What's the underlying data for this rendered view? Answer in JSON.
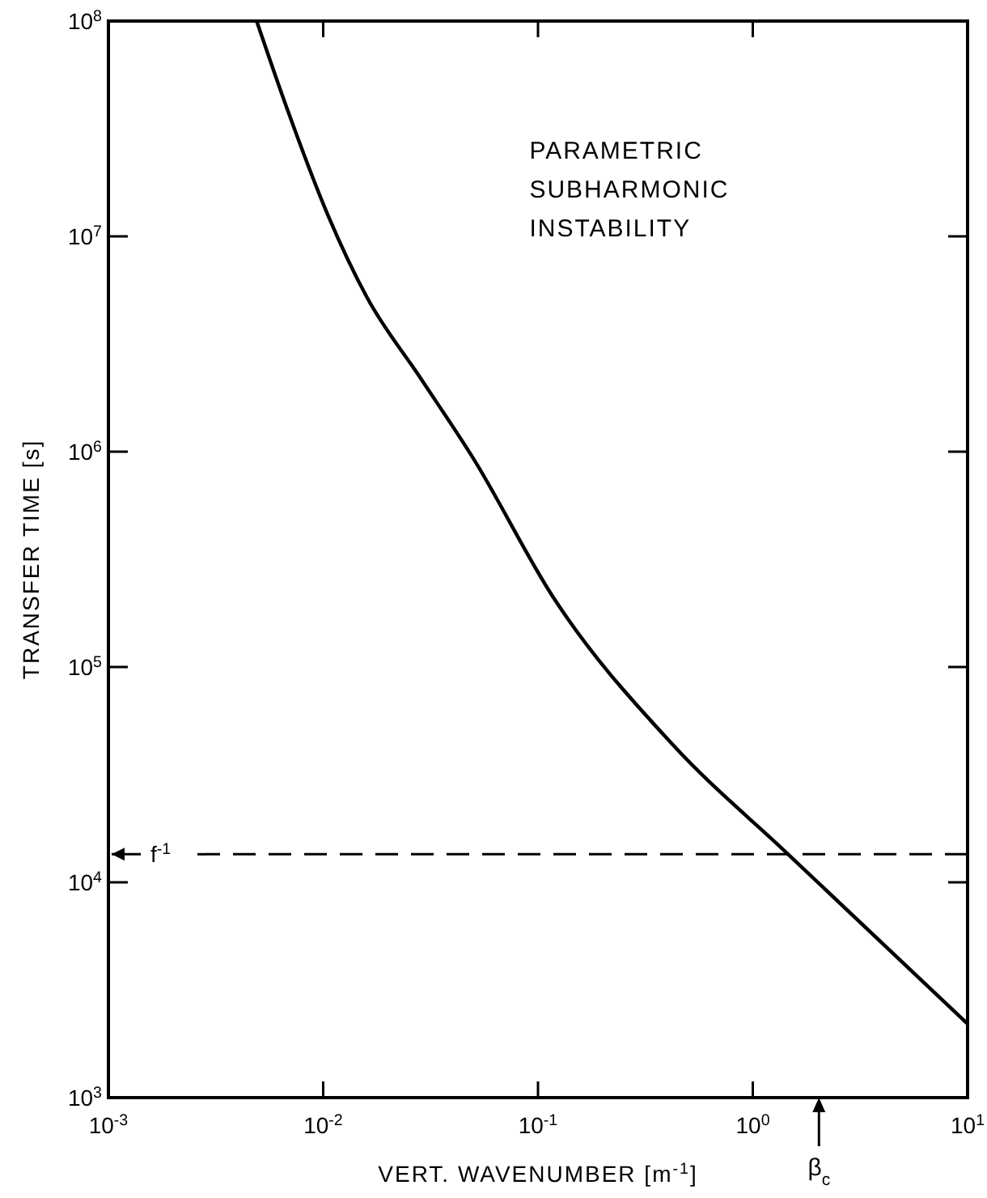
{
  "chart_data": {
    "type": "line",
    "xlabel": "VERT. WAVENUMBER [m$^{-1}$]",
    "ylabel": "TRANSFER TIME [s]",
    "log": "xy",
    "xlim": [
      0.001,
      10
    ],
    "ylim": [
      1000,
      100000000
    ],
    "xticks": [
      {
        "value": 0.001,
        "label": "10$^{-3}$"
      },
      {
        "value": 0.01,
        "label": "10$^{-2}$"
      },
      {
        "value": 0.1,
        "label": "10$^{-1}$"
      },
      {
        "value": 1,
        "label": "10$^{0}$"
      },
      {
        "value": 10,
        "label": "10$^{1}$"
      }
    ],
    "yticks": [
      {
        "value": 1000,
        "label": "10$^{3}$"
      },
      {
        "value": 10000,
        "label": "10$^{4}$"
      },
      {
        "value": 100000,
        "label": "10$^{5}$"
      },
      {
        "value": 1000000,
        "label": "10$^{6}$"
      },
      {
        "value": 10000000,
        "label": "10$^{7}$"
      },
      {
        "value": 100000000,
        "label": "10$^{8}$"
      }
    ],
    "grid": false,
    "line_style": "solid",
    "series": [
      {
        "color": "#000000",
        "x": [
          0.0049,
          0.0068,
          0.0105,
          0.016,
          0.028,
          0.05,
          0.118,
          0.42,
          1.46,
          10
        ],
        "values": [
          100000000,
          39000000,
          12600000,
          5200000,
          2240000,
          930000,
          210000,
          44000,
          13500,
          2200
        ]
      }
    ],
    "ref_lines": [
      {
        "axis": "y",
        "value": 13500,
        "label": "f$^{-1}$",
        "line_style": "dashed",
        "color": "#000000"
      }
    ],
    "annotations": [
      "PARAMETRIC SUBHARMONIC INSTABILITY",
      "β$_{c}$"
    ]
  }
}
